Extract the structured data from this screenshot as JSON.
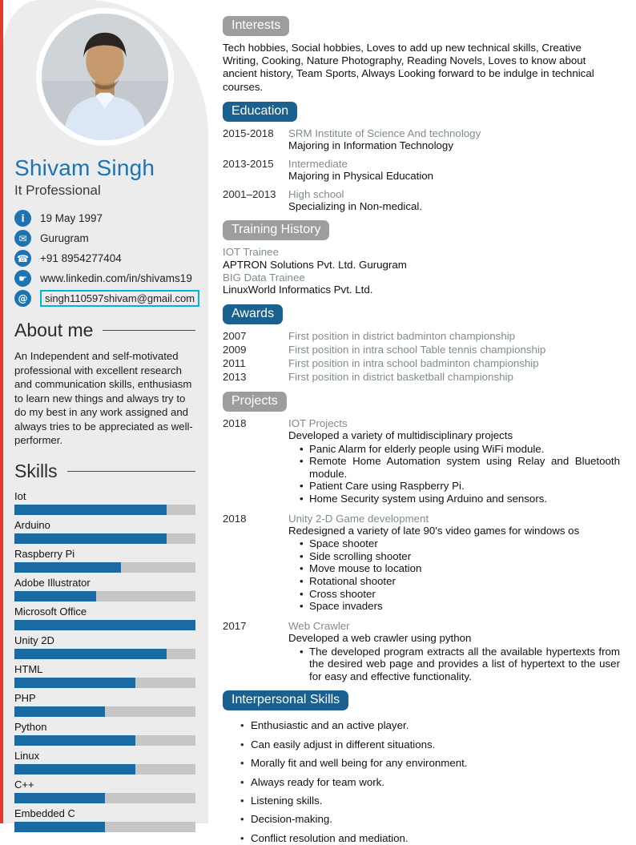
{
  "colors": {
    "accent": "#1c74b3",
    "badge-blue": "#1a618f",
    "badge-gray": "#9d9d9d",
    "red-stripe": "#e03b2f",
    "sidebar-bg": "#ececec",
    "bar-track": "#c6c6c6",
    "bar-fill": "#1a6aa3",
    "muted-text": "#7f8c8d",
    "email-box": "#00b4d8"
  },
  "profile": {
    "name": "Shivam Singh",
    "title": "It Professional",
    "contacts": [
      {
        "icon": "info-icon",
        "glyph": "i",
        "text": "19 May 1997"
      },
      {
        "icon": "mail-icon",
        "glyph": "✉",
        "text": "Gurugram"
      },
      {
        "icon": "phone-icon",
        "glyph": "☎",
        "text": "+91 8954277404"
      },
      {
        "icon": "link-icon",
        "glyph": "☛",
        "text": "www.linkedin.com/in/shivams19"
      },
      {
        "icon": "at-icon",
        "glyph": "@",
        "text": "singh110597shivam@gmail.com"
      }
    ]
  },
  "about": {
    "heading": "About me",
    "text": "An Independent and self-motivated professional with excellent research and communication skills, enthusiasm to learn new things and always try to do my best in any work assigned and always tries to be appreciated as well-performer."
  },
  "skills": {
    "heading": "Skills",
    "items": [
      {
        "label": "Iot",
        "percent": 84
      },
      {
        "label": "Arduino",
        "percent": 84
      },
      {
        "label": "Raspberry Pi",
        "percent": 59
      },
      {
        "label": "Adobe Illustrator",
        "percent": 45
      },
      {
        "label": "Microsoft Office",
        "percent": 100
      },
      {
        "label": "Unity 2D",
        "percent": 84
      },
      {
        "label": "HTML",
        "percent": 67
      },
      {
        "label": "PHP",
        "percent": 50
      },
      {
        "label": "Python",
        "percent": 67
      },
      {
        "label": "Linux",
        "percent": 67
      },
      {
        "label": "C++",
        "percent": 50
      },
      {
        "label": "Embedded C",
        "percent": 50
      }
    ]
  },
  "interests": {
    "heading": "Interests",
    "text": "Tech hobbies, Social hobbies, Loves to add up new technical skills, Creative Writing, Cooking, Nature Photography, Reading Novels, Loves to know about ancient history, Team Sports, Always Looking forward to be indulge in technical courses."
  },
  "education": {
    "heading": "Education",
    "items": [
      {
        "years": "2015-2018",
        "school": "SRM Institute of Science And technology",
        "detail": "Majoring in Information Technology"
      },
      {
        "years": "2013-2015",
        "school": "Intermediate",
        "detail": "Majoring in Physical Education"
      },
      {
        "years": "2001–2013",
        "school": "High school",
        "detail": "Specializing in Non-medical."
      }
    ]
  },
  "training": {
    "heading": "Training History",
    "lines": [
      {
        "text": "IOT Trainee",
        "muted": true
      },
      {
        "text": "APTRON Solutions Pvt. Ltd. Gurugram",
        "muted": false
      },
      {
        "text": "BIG Data Trainee",
        "muted": true
      },
      {
        "text": "LinuxWorld Informatics Pvt. Ltd.",
        "muted": false
      }
    ]
  },
  "awards": {
    "heading": "Awards",
    "items": [
      {
        "year": "2007",
        "text": "First position in district badminton championship"
      },
      {
        "year": "2009",
        "text": "First position in intra school Table tennis championship"
      },
      {
        "year": "2011",
        "text": "First position in intra school badminton championship"
      },
      {
        "year": "2013",
        "text": "First position in district basketball championship"
      }
    ]
  },
  "projects": {
    "heading": "Projects",
    "items": [
      {
        "year": "2018",
        "title": "IOT Projects",
        "subtitle": "Developed a variety of multidisciplinary projects",
        "bullets": [
          "Panic Alarm for elderly people using WiFi module.",
          "Remote Home Automation system using Relay and Bluetooth module.",
          "Patient Care using Raspberry Pi.",
          "Home Security system using Arduino and sensors."
        ]
      },
      {
        "year": "2018",
        "title": "Unity 2-D Game development",
        "subtitle": "Redesigned a variety of late 90's video games for windows os",
        "bullets": [
          "Space shooter",
          "Side scrolling shooter",
          "Move mouse to location",
          "Rotational shooter",
          "Cross shooter",
          "Space invaders"
        ]
      },
      {
        "year": "2017",
        "title": "Web Crawler",
        "subtitle": "Developed a web crawler using python",
        "bullets": [
          "The developed program extracts all the available hypertexts from the desired web page and provides a list of hypertext to the user for easy and effective functionality."
        ]
      }
    ]
  },
  "interpersonal": {
    "heading": "Interpersonal Skills",
    "bullets": [
      "Enthusiastic and an active player.",
      "Can easily adjust in different situations.",
      "Morally fit and well being for any environment.",
      "Always ready for team work.",
      "Listening skills.",
      "Decision-making.",
      "Conflict resolution and mediation."
    ]
  }
}
